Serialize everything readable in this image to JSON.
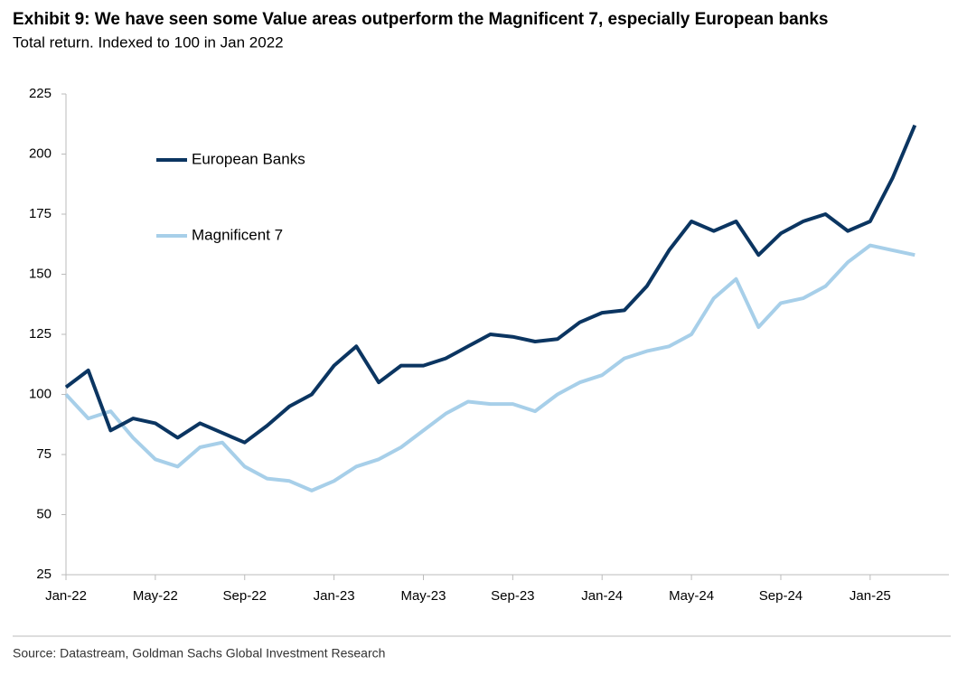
{
  "chart_data": {
    "type": "line",
    "title": "Exhibit 9: We have seen some Value areas outperform the Magnificent 7, especially European banks",
    "subtitle": "Total return. Indexed to 100 in Jan 2022",
    "source": "Source: Datastream, Goldman Sachs Global Investment Research",
    "x": [
      "2022-01",
      "2022-02",
      "2022-03",
      "2022-04",
      "2022-05",
      "2022-06",
      "2022-07",
      "2022-08",
      "2022-09",
      "2022-10",
      "2022-11",
      "2022-12",
      "2023-01",
      "2023-02",
      "2023-03",
      "2023-04",
      "2023-05",
      "2023-06",
      "2023-07",
      "2023-08",
      "2023-09",
      "2023-10",
      "2023-11",
      "2023-12",
      "2024-01",
      "2024-02",
      "2024-03",
      "2024-04",
      "2024-05",
      "2024-06",
      "2024-07",
      "2024-08",
      "2024-09",
      "2024-10",
      "2024-11",
      "2024-12",
      "2025-01",
      "2025-02",
      "2025-03"
    ],
    "series": [
      {
        "name": "European Banks",
        "color": "#0b3561",
        "values": [
          103,
          110,
          85,
          90,
          88,
          82,
          88,
          84,
          80,
          87,
          95,
          100,
          112,
          120,
          105,
          112,
          112,
          115,
          120,
          125,
          124,
          122,
          123,
          130,
          134,
          135,
          145,
          160,
          172,
          168,
          172,
          158,
          167,
          172,
          175,
          168,
          172,
          190,
          212
        ]
      },
      {
        "name": "Magnificent 7",
        "color": "#a7cfe9",
        "values": [
          100,
          90,
          93,
          82,
          73,
          70,
          78,
          80,
          70,
          65,
          64,
          60,
          64,
          70,
          73,
          78,
          85,
          92,
          97,
          96,
          96,
          93,
          100,
          105,
          108,
          115,
          118,
          120,
          125,
          140,
          148,
          128,
          138,
          140,
          145,
          155,
          162,
          160,
          158
        ]
      }
    ],
    "xlim": [
      "2022-01",
      "2025-04"
    ],
    "xticks": [
      {
        "value": "2022-01",
        "label": "Jan-22"
      },
      {
        "value": "2022-05",
        "label": "May-22"
      },
      {
        "value": "2022-09",
        "label": "Sep-22"
      },
      {
        "value": "2023-01",
        "label": "Jan-23"
      },
      {
        "value": "2023-05",
        "label": "May-23"
      },
      {
        "value": "2023-09",
        "label": "Sep-23"
      },
      {
        "value": "2024-01",
        "label": "Jan-24"
      },
      {
        "value": "2024-05",
        "label": "May-24"
      },
      {
        "value": "2024-09",
        "label": "Sep-24"
      },
      {
        "value": "2025-01",
        "label": "Jan-25"
      }
    ],
    "ylim": [
      25,
      225
    ],
    "yticks": [
      25,
      50,
      75,
      100,
      125,
      150,
      175,
      200,
      225
    ],
    "grid": false
  }
}
